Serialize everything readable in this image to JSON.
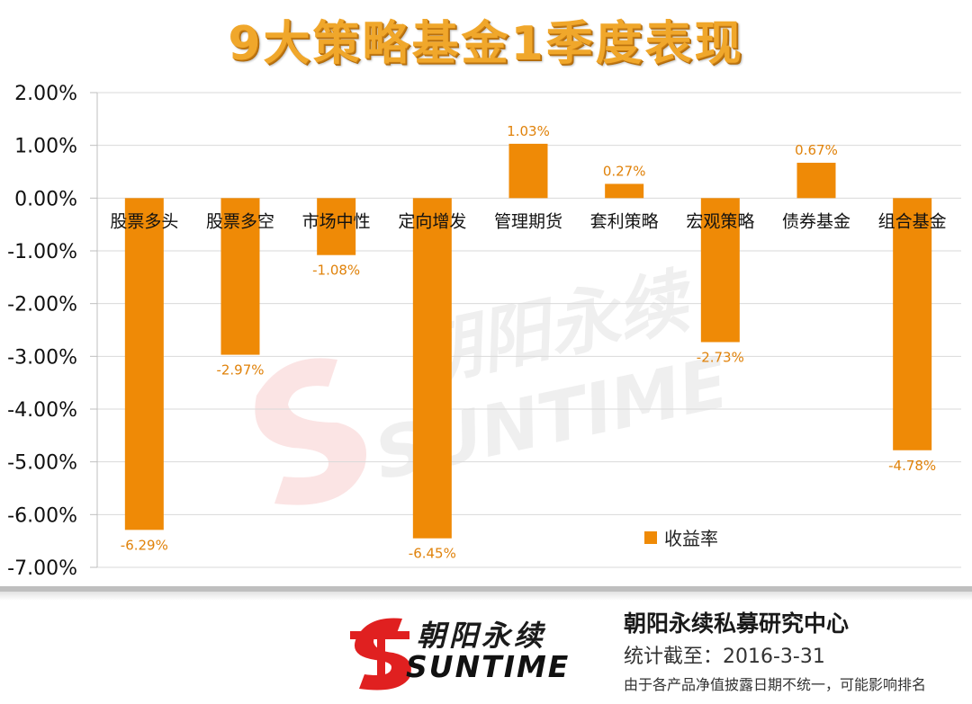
{
  "chart_data": {
    "type": "bar",
    "title": "9大策略基金1季度表现",
    "categories": [
      "股票多头",
      "股票多空",
      "市场中性",
      "定向增发",
      "管理期货",
      "套利策略",
      "宏观策略",
      "债券基金",
      "组合基金"
    ],
    "series": [
      {
        "name": "收益率",
        "values": [
          -6.29,
          -2.97,
          -1.08,
          -6.45,
          1.03,
          0.27,
          -2.73,
          0.67,
          -4.78
        ],
        "labels": [
          "-6.29%",
          "-2.97%",
          "-1.08%",
          "-6.45%",
          "1.03%",
          "0.27%",
          "-2.73%",
          "0.67%",
          "-4.78%"
        ]
      }
    ],
    "ylim": [
      -7,
      2
    ],
    "yticks": [
      2,
      1,
      0,
      -1,
      -2,
      -3,
      -4,
      -5,
      -6,
      -7
    ],
    "ytick_labels": [
      "2.00%",
      "1.00%",
      "0.00%",
      "-1.00%",
      "-2.00%",
      "-3.00%",
      "-4.00%",
      "-5.00%",
      "-6.00%",
      "-7.00%"
    ],
    "grid": true,
    "legend_position": "bottom-right",
    "bar_color": "#ef8a06"
  },
  "watermark": {
    "cn": "朝阳永续",
    "en": "SUNTIME"
  },
  "footer": {
    "logo_cn": "朝阳永续",
    "logo_en": "SUNTIME",
    "org_name": "朝阳永续私募研究中心",
    "date_text": "统计截至：2016-3-31",
    "note_text": "由于各产品净值披露日期不统一，可能影响排名"
  },
  "colors": {
    "bar": "#ef8a06",
    "grid": "#d9d9d9",
    "title": "#f0a72b",
    "logo_red": "#e02020"
  }
}
